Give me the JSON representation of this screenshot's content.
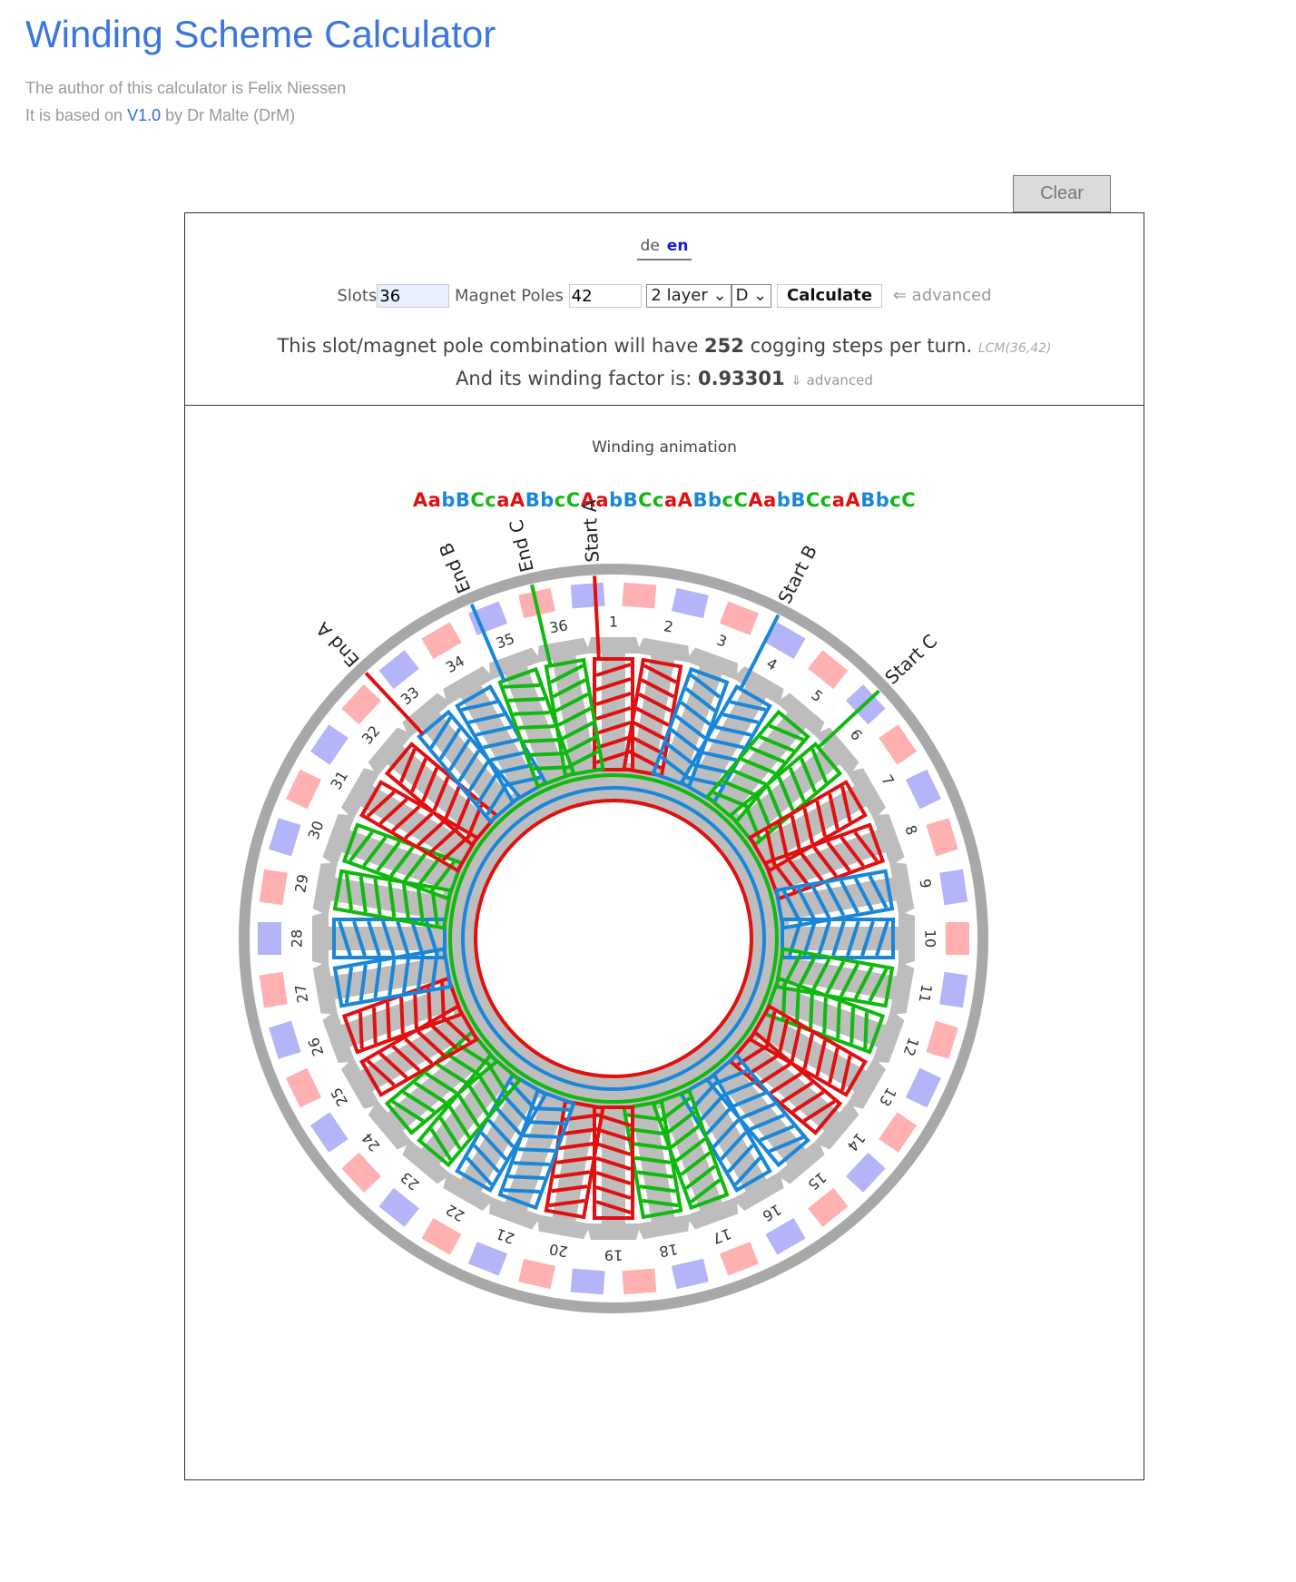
{
  "header": {
    "title": "Winding Scheme Calculator",
    "author_line": "The author of this calculator is Felix Niessen",
    "based_prefix": "It is based on ",
    "based_link": "V1.0",
    "based_suffix": " by Dr Malte (DrM)"
  },
  "clear_button": "Clear",
  "lang": {
    "de": "de",
    "en": "en",
    "active": "en"
  },
  "controls": {
    "slots_label": "Slots",
    "slots_value": "36",
    "poles_label": "Magnet Poles",
    "poles_value": "42",
    "layer_select": "2 layer",
    "connection_select": "D",
    "calculate_label": "Calculate",
    "advanced_link": "⇐ advanced"
  },
  "info": {
    "cogging_prefix": "This slot/magnet pole combination will have ",
    "cogging_steps": "252",
    "cogging_suffix": " cogging steps per turn.",
    "lcm_note": "LCM(36,42)",
    "winding_prefix": "And its winding factor is: ",
    "winding_factor": "0.93301",
    "advanced_link": "⇓ advanced"
  },
  "animation": {
    "title": "Winding animation",
    "sequence": "AabBCcaABbcCAabBCcaABbcCAabBCcaABbcC"
  },
  "colors": {
    "A": "#e01010",
    "B": "#1a86d8",
    "C": "#10b810",
    "pole_n": "#ffb0b0",
    "pole_s": "#b4b4f8",
    "stator": "#bdbdbd",
    "ring": "#a8a8a8"
  },
  "diagram": {
    "slot_count": 36,
    "magnet_count": 42,
    "labels": {
      "start_a": "Start A",
      "start_b": "Start B",
      "start_c": "Start C",
      "end_a": "End A",
      "end_b": "End B",
      "end_c": "End C"
    }
  }
}
